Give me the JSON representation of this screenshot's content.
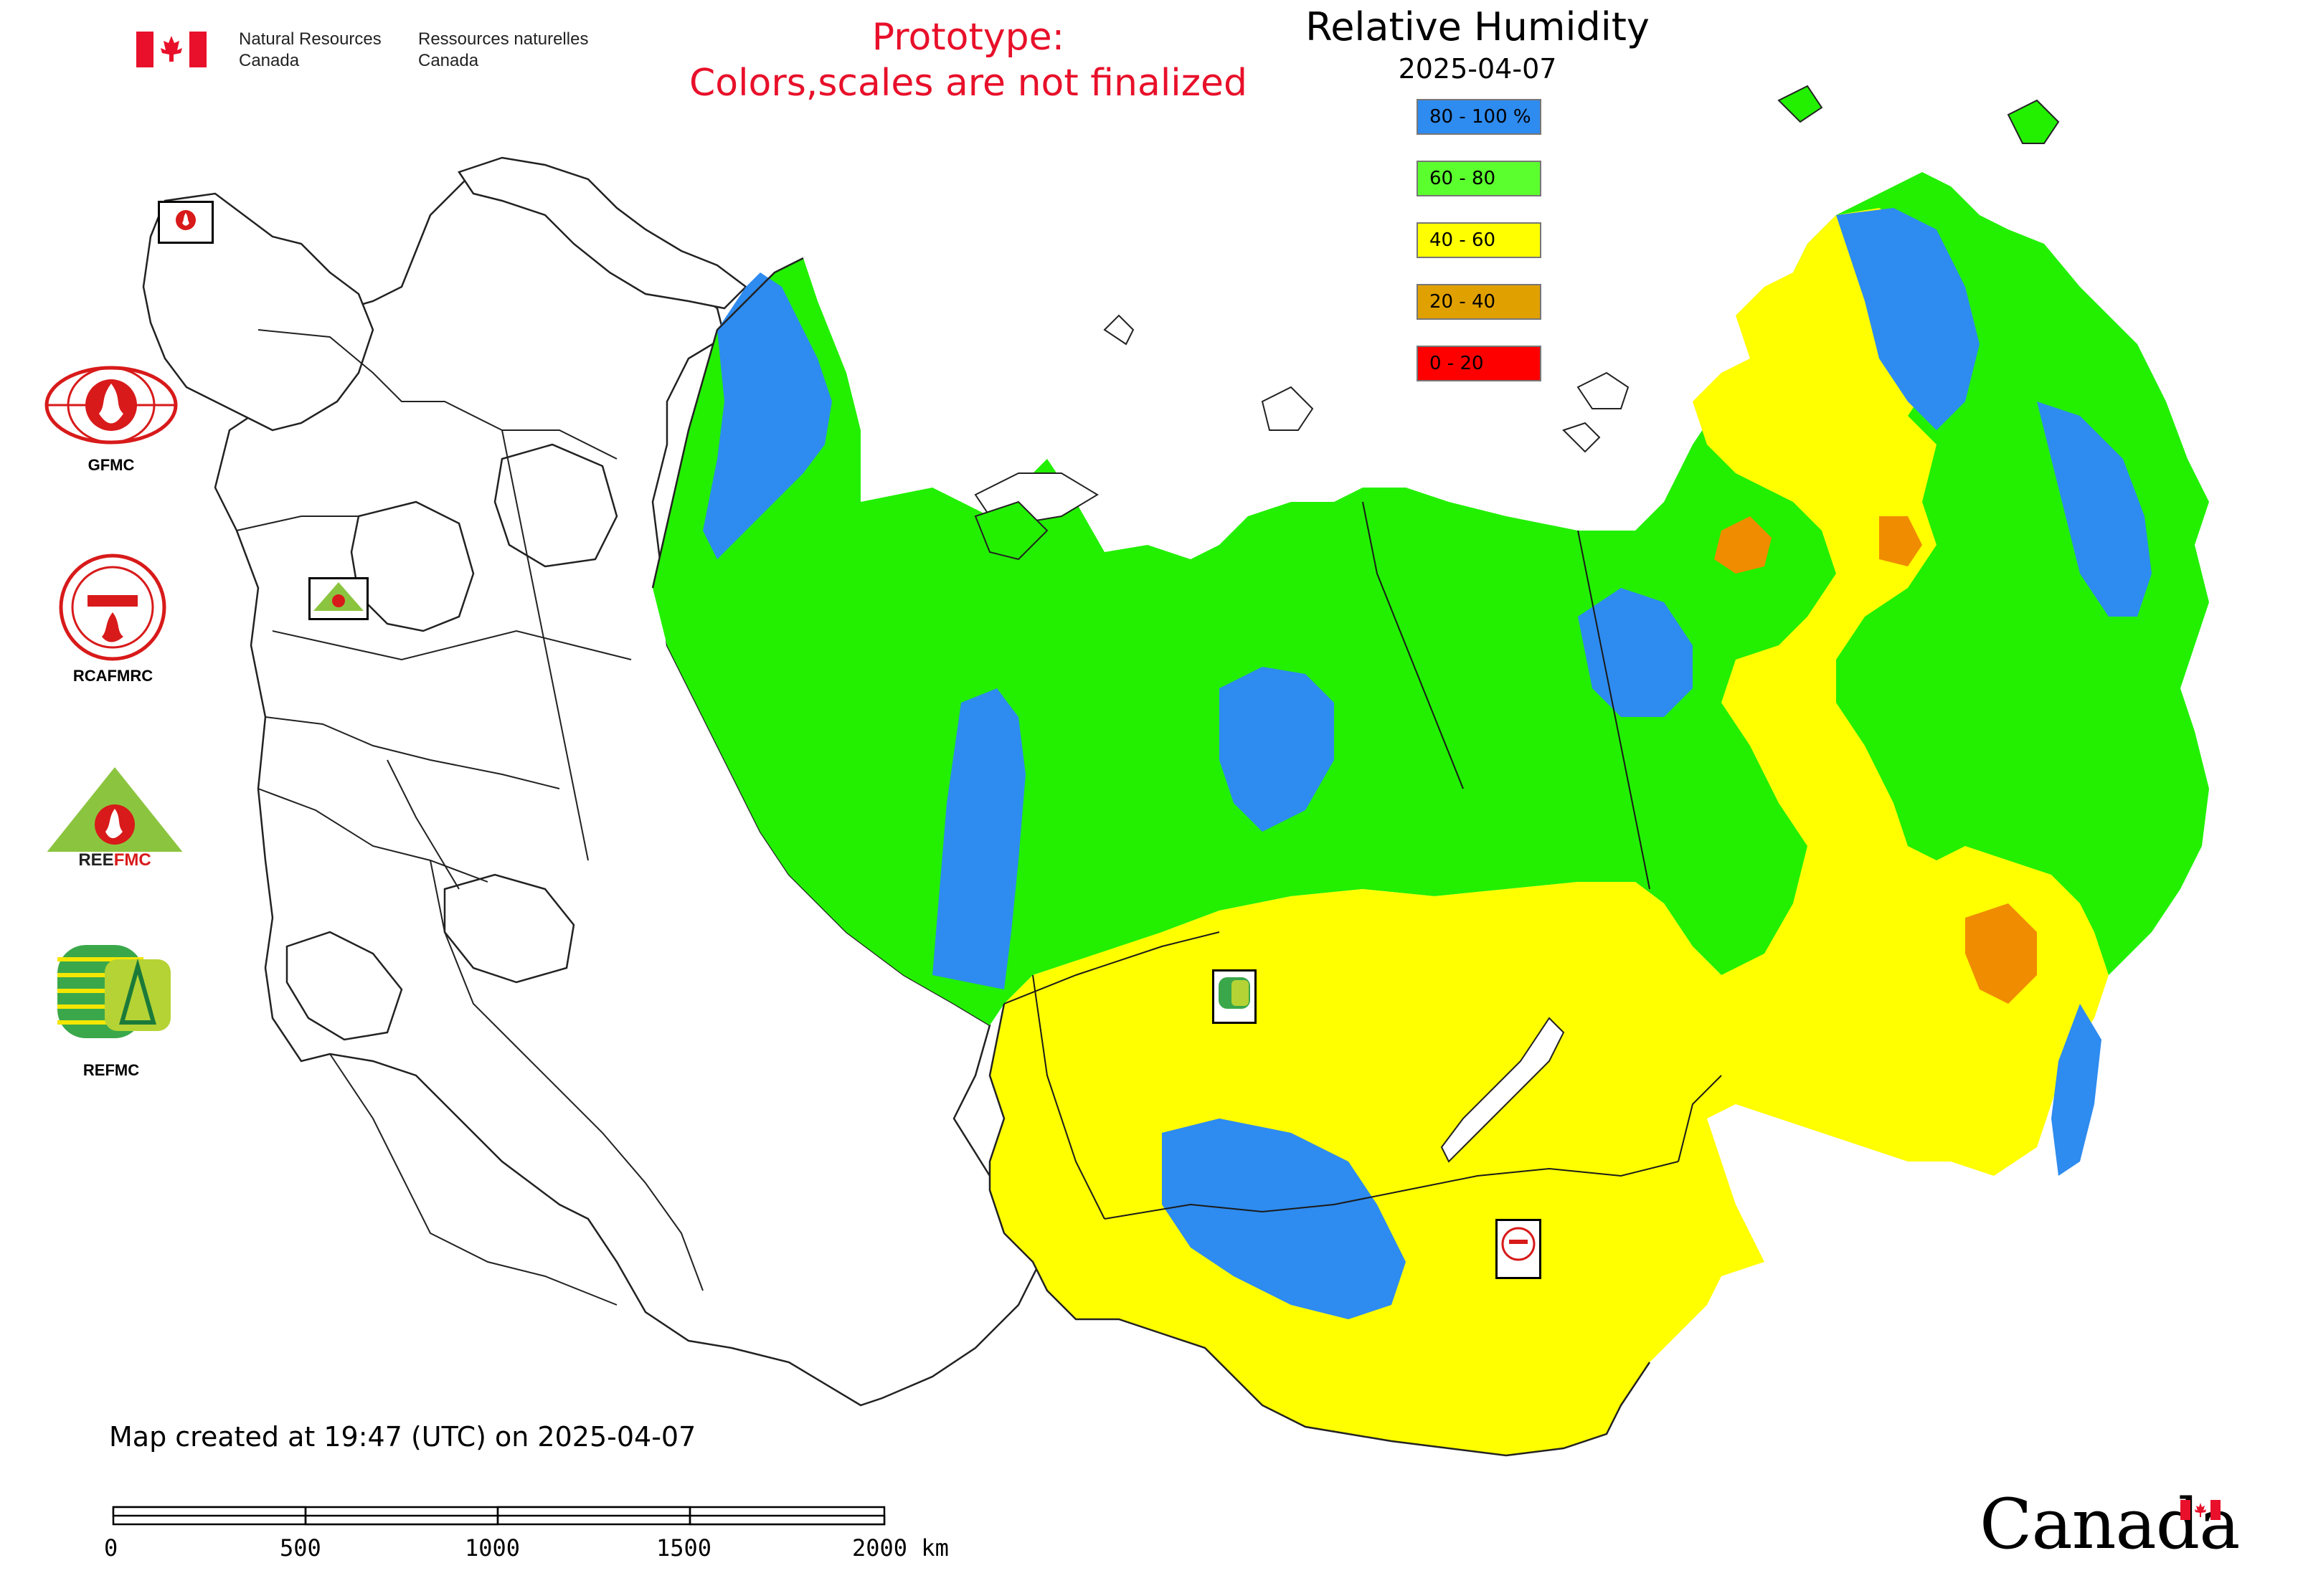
{
  "header": {
    "agency_en": [
      "Natural Resources",
      "Canada"
    ],
    "agency_fr": [
      "Ressources naturelles",
      "Canada"
    ],
    "prototype_lines": [
      "Prototype:",
      "Colors,scales are not finalized"
    ],
    "title": "Relative Humidity",
    "date": "2025-04-07"
  },
  "legend": [
    {
      "label": "80 - 100 %",
      "color": "#2e8bef"
    },
    {
      "label": "60 - 80",
      "color": "#5cff2e"
    },
    {
      "label": "40 - 60",
      "color": "#ffff00"
    },
    {
      "label": "20 - 40",
      "color": "#e0a000"
    },
    {
      "label": "0 - 20",
      "color": "#ff0000"
    }
  ],
  "logos": [
    {
      "name": "GFMC",
      "label": "GFMC"
    },
    {
      "name": "RCAFMRC",
      "label": "RCAFMRC"
    },
    {
      "name": "REEFMC",
      "label": "REEFMC"
    },
    {
      "name": "REFMC",
      "label": "REFMC"
    }
  ],
  "map_markers": [
    {
      "name": "gfmc-marker",
      "label": "GFMC"
    },
    {
      "name": "reefmc-marker",
      "label": "REEFMC"
    },
    {
      "name": "refmc-marker",
      "label": "REFMC"
    },
    {
      "name": "rcafmrc-marker",
      "label": "RCAFMRC"
    }
  ],
  "footer": {
    "created": "Map created at 19:47 (UTC) on 2025-04-07",
    "scale_labels": [
      "0",
      "500",
      "1000",
      "1500",
      "2000 km"
    ],
    "wordmark": "Canada"
  },
  "colors": {
    "humid_high": "#2e8bef",
    "humid_mid": "#22f000",
    "humid_low": "#ffff00",
    "humid_dry": "#f08c00",
    "prototype_text": "#e8102a"
  }
}
